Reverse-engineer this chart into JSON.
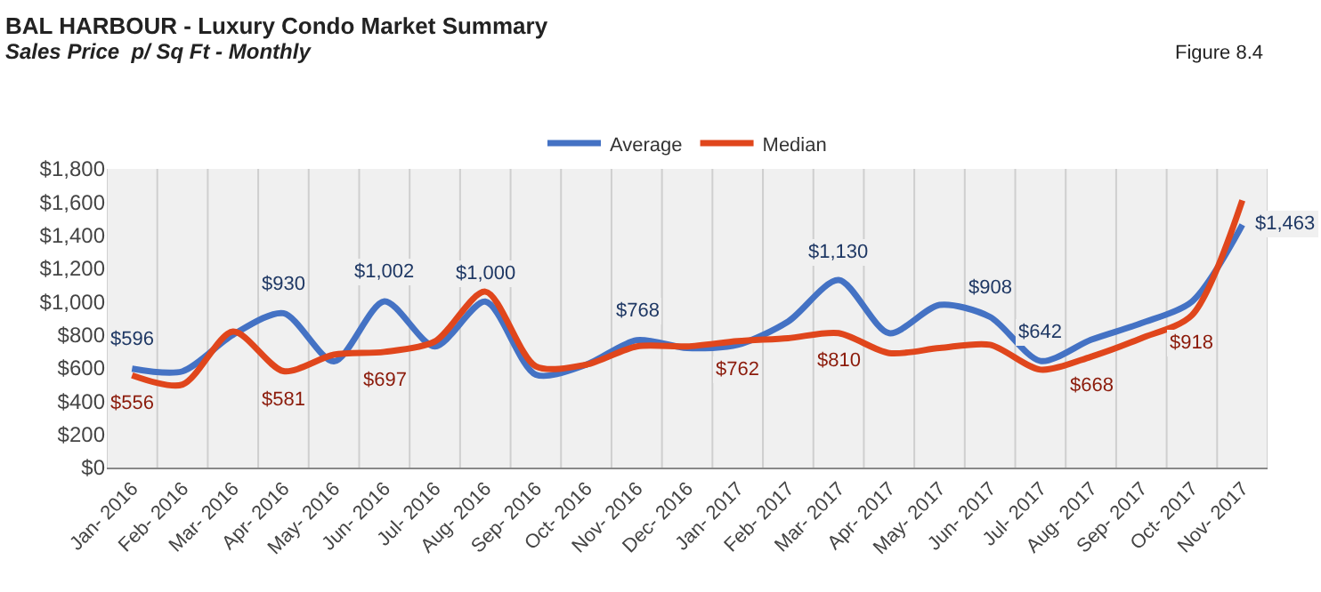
{
  "chart_data": {
    "type": "line",
    "title": "BAL HARBOUR - Luxury Condo Market Summary",
    "subtitle": "Sales Price  p/ Sq Ft - Monthly",
    "annotations": [
      "Figure 8.4"
    ],
    "categories": [
      "Jan- 2016",
      "Feb- 2016",
      "Mar- 2016",
      "Apr- 2016",
      "May- 2016",
      "Jun- 2016",
      "Jul- 2016",
      "Aug- 2016",
      "Sep- 2016",
      "Oct- 2016",
      "Nov- 2016",
      "Dec- 2016",
      "Jan- 2017",
      "Feb- 2017",
      "Mar- 2017",
      "Apr- 2017",
      "May- 2017",
      "Jun- 2017",
      "Jul- 2017",
      "Aug- 2017",
      "Sep- 2017",
      "Oct- 2017",
      "Nov- 2017"
    ],
    "series": [
      {
        "name": "Average",
        "color": "#4472c4",
        "values": [
          596,
          580,
          800,
          930,
          640,
          1002,
          730,
          1000,
          560,
          620,
          768,
          720,
          740,
          880,
          1130,
          810,
          980,
          908,
          642,
          770,
          870,
          1000,
          1463
        ],
        "value_labels": [
          "$596",
          null,
          null,
          "$930",
          null,
          "$1,002",
          null,
          "$1,000",
          null,
          null,
          "$768",
          null,
          null,
          null,
          "$1,130",
          null,
          null,
          "$908",
          "$642",
          null,
          null,
          null,
          "$1,463"
        ]
      },
      {
        "name": "Median",
        "color": "#e0461c",
        "values": [
          556,
          500,
          820,
          581,
          680,
          697,
          760,
          1060,
          610,
          620,
          730,
          730,
          762,
          780,
          810,
          690,
          720,
          740,
          590,
          668,
          780,
          918,
          1610
        ],
        "value_labels": [
          "$556",
          null,
          null,
          "$581",
          null,
          "$697",
          null,
          null,
          null,
          null,
          null,
          null,
          "$762",
          null,
          "$810",
          null,
          null,
          null,
          null,
          "$668",
          null,
          "$918",
          null
        ]
      }
    ],
    "ylim": [
      0,
      1800
    ],
    "yticks": [
      {
        "value": 0,
        "label": "$0"
      },
      {
        "value": 200,
        "label": "$200"
      },
      {
        "value": 400,
        "label": "$400"
      },
      {
        "value": 600,
        "label": "$600"
      },
      {
        "value": 800,
        "label": "$800"
      },
      {
        "value": 1000,
        "label": "$1,000"
      },
      {
        "value": 1200,
        "label": "$1,200"
      },
      {
        "value": 1400,
        "label": "$1,400"
      },
      {
        "value": 1600,
        "label": "$1,600"
      },
      {
        "value": 1800,
        "label": "$1,800"
      }
    ],
    "grid": "x",
    "legend": "top",
    "marker": "none",
    "line_style": "solid"
  }
}
